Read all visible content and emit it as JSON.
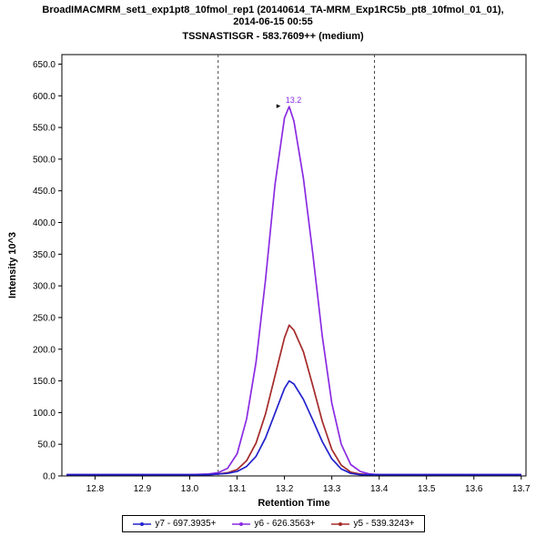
{
  "chart_data": {
    "type": "line",
    "title_lines": [
      "BroadIMACMRM_set1_exp1pt8_10fmol_rep1 (20140614_TA-MRM_Exp1RC5b_pt8_10fmol_01_01),",
      "2014-06-15 00:55"
    ],
    "title": "BroadIMACMRM_set1_exp1pt8_10fmol_rep1 (20140614_TA-MRM_Exp1RC5b_pt8_10fmol_01_01), 2014-06-15 00:55",
    "subtitle": "TSSNASTISGR - 583.7609++ (medium)",
    "xlabel": "Retention Time",
    "ylabel": "Intensity 10^3",
    "xlim": [
      12.73,
      13.71
    ],
    "ylim": [
      0,
      665
    ],
    "x_ticks": [
      12.8,
      12.9,
      13.0,
      13.1,
      13.2,
      13.3,
      13.4,
      13.5,
      13.6,
      13.7
    ],
    "y_ticks": [
      0,
      50,
      100,
      150,
      200,
      250,
      300,
      350,
      400,
      450,
      500,
      550,
      600,
      650
    ],
    "grid": false,
    "legend_position": "bottom-center",
    "boundary_lines_x": [
      13.06,
      13.39
    ],
    "peak_annotation": {
      "x": 13.21,
      "y": 583,
      "label": "13.2"
    },
    "colors": {
      "frame": "#000000",
      "boundary": "#444444",
      "annotation": "#8a2be2",
      "arrow": "#000000"
    },
    "series": [
      {
        "id": "y7",
        "name": "y7 - 697.3935+",
        "color": "#2222cc",
        "points": [
          [
            12.74,
            2
          ],
          [
            12.85,
            2
          ],
          [
            12.95,
            2
          ],
          [
            13.0,
            2
          ],
          [
            13.04,
            2
          ],
          [
            13.06,
            3
          ],
          [
            13.08,
            4
          ],
          [
            13.1,
            7
          ],
          [
            13.12,
            15
          ],
          [
            13.14,
            31
          ],
          [
            13.16,
            60
          ],
          [
            13.18,
            99
          ],
          [
            13.2,
            138
          ],
          [
            13.21,
            150
          ],
          [
            13.22,
            145
          ],
          [
            13.24,
            121
          ],
          [
            13.26,
            88
          ],
          [
            13.28,
            54
          ],
          [
            13.3,
            27
          ],
          [
            13.32,
            11
          ],
          [
            13.34,
            4
          ],
          [
            13.36,
            2
          ],
          [
            13.4,
            2
          ],
          [
            13.5,
            2
          ],
          [
            13.6,
            2
          ],
          [
            13.7,
            2
          ]
        ]
      },
      {
        "id": "y6",
        "name": "y6 - 626.3563+",
        "color": "#8a2be2",
        "points": [
          [
            12.74,
            2
          ],
          [
            12.85,
            2
          ],
          [
            12.95,
            2
          ],
          [
            13.0,
            2
          ],
          [
            13.04,
            3
          ],
          [
            13.06,
            5
          ],
          [
            13.08,
            12
          ],
          [
            13.1,
            35
          ],
          [
            13.12,
            90
          ],
          [
            13.14,
            180
          ],
          [
            13.16,
            310
          ],
          [
            13.18,
            460
          ],
          [
            13.2,
            565
          ],
          [
            13.21,
            583
          ],
          [
            13.22,
            560
          ],
          [
            13.24,
            470
          ],
          [
            13.26,
            350
          ],
          [
            13.28,
            220
          ],
          [
            13.3,
            115
          ],
          [
            13.32,
            50
          ],
          [
            13.34,
            18
          ],
          [
            13.36,
            7
          ],
          [
            13.38,
            3
          ],
          [
            13.4,
            2
          ],
          [
            13.5,
            2
          ],
          [
            13.6,
            2
          ],
          [
            13.7,
            2
          ]
        ]
      },
      {
        "id": "y5",
        "name": "y5 - 539.3243+",
        "color": "#a52a2a",
        "points": [
          [
            12.74,
            2
          ],
          [
            12.85,
            2
          ],
          [
            12.95,
            2
          ],
          [
            13.0,
            2
          ],
          [
            13.04,
            2
          ],
          [
            13.06,
            3
          ],
          [
            13.08,
            5
          ],
          [
            13.1,
            10
          ],
          [
            13.12,
            24
          ],
          [
            13.14,
            52
          ],
          [
            13.16,
            98
          ],
          [
            13.18,
            158
          ],
          [
            13.2,
            218
          ],
          [
            13.21,
            238
          ],
          [
            13.22,
            230
          ],
          [
            13.24,
            196
          ],
          [
            13.26,
            142
          ],
          [
            13.28,
            86
          ],
          [
            13.3,
            42
          ],
          [
            13.32,
            17
          ],
          [
            13.34,
            6
          ],
          [
            13.36,
            3
          ],
          [
            13.38,
            2
          ],
          [
            13.4,
            2
          ],
          [
            13.5,
            2
          ],
          [
            13.6,
            2
          ],
          [
            13.7,
            2
          ]
        ]
      }
    ]
  }
}
